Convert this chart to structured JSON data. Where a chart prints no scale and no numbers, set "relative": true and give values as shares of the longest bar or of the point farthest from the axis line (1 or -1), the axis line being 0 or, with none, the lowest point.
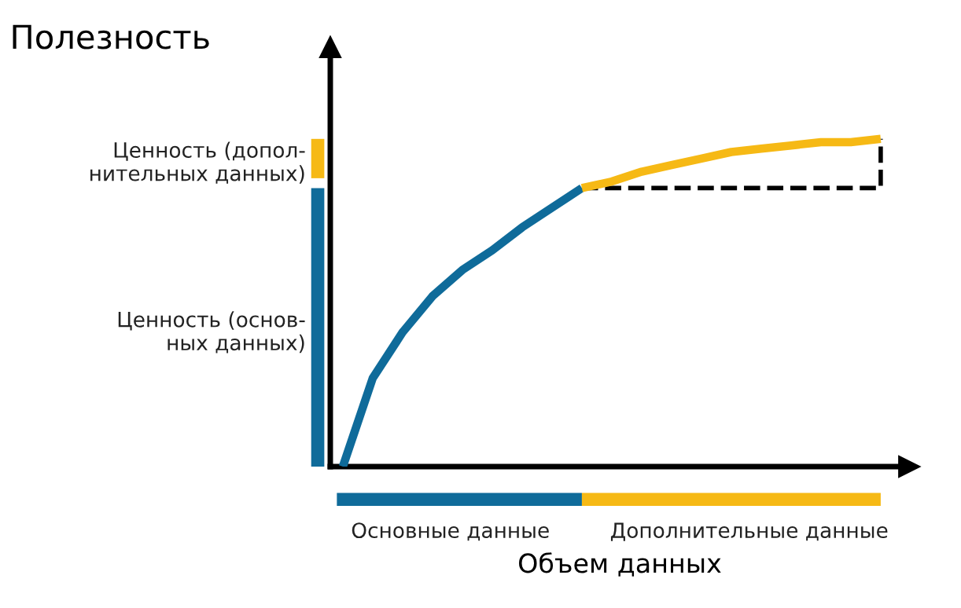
{
  "chart_data": {
    "type": "line",
    "relative": true,
    "ylabel": "Полезность",
    "xlabel": "Объем данных",
    "categories": [
      null,
      null,
      null,
      null,
      null,
      null,
      null,
      null,
      null,
      null,
      null,
      null,
      null,
      null,
      null,
      null,
      null,
      null,
      null
    ],
    "series": [
      {
        "color": "#0f6b9a",
        "values": [
          0,
          0.27,
          0.41,
          0.52,
          0.6,
          0.66,
          0.73,
          0.79,
          0.85,
          null,
          null,
          null,
          null,
          null,
          null,
          null,
          null,
          null,
          null
        ]
      },
      {
        "color": "#f6b915",
        "values": [
          null,
          null,
          null,
          null,
          null,
          null,
          null,
          null,
          0.85,
          0.87,
          0.9,
          0.92,
          0.94,
          0.96,
          0.97,
          0.98,
          0.99,
          0.99,
          1
        ]
      }
    ],
    "annotations": [
      "Ценность (допол-\nнительных данных)",
      "Ценность (основ-\nных данных)",
      "Основные данные",
      "Дополнительные данные"
    ],
    "grid": false,
    "legend": false,
    "line_style": "solid",
    "marker": "none"
  }
}
